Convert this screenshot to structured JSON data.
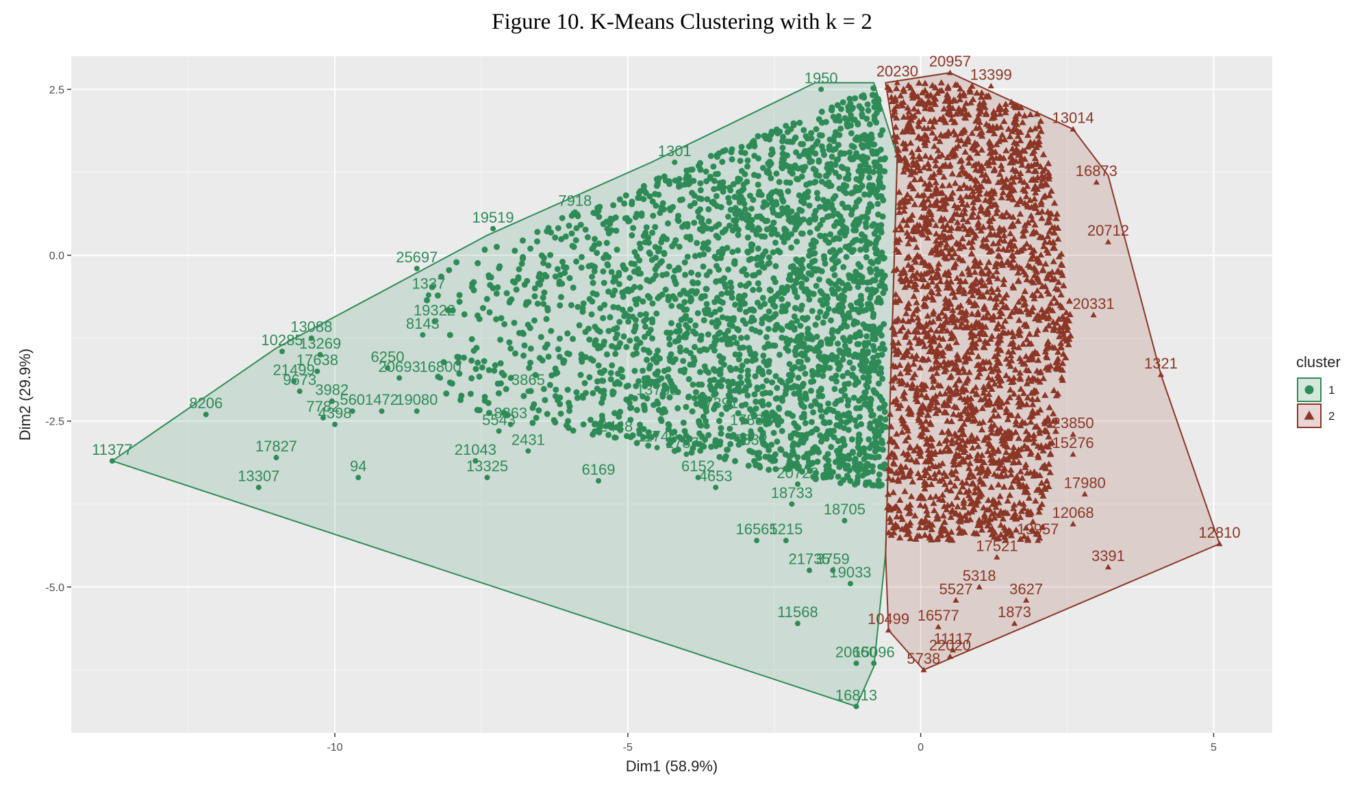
{
  "title": "Figure 10. K-Means Clustering with k = 2",
  "chart_data": {
    "type": "scatter",
    "xlabel": "Dim1 (58.9%)",
    "ylabel": "Dim2 (29.9%)",
    "xlim": [
      -14.5,
      6
    ],
    "ylim": [
      -7.2,
      3
    ],
    "x_ticks": [
      -10,
      -5,
      0,
      5
    ],
    "x_tick_labels": [
      "-10",
      "-5",
      "0",
      "5"
    ],
    "y_ticks": [
      2.5,
      0.0,
      -2.5,
      -5.0
    ],
    "y_tick_labels": [
      "2.5",
      "0.0",
      "-2.5",
      "-5.0"
    ],
    "grid": true,
    "background": "#ebebeb",
    "legend": {
      "title": "cluster",
      "placement": "right",
      "entries": [
        {
          "label": "1",
          "shape": "circle",
          "color": "#2e8b57"
        },
        {
          "label": "2",
          "shape": "triangle",
          "color": "#8b3626"
        }
      ]
    },
    "series": [
      {
        "name": "1",
        "color": "#2e8b57",
        "fill": "#2e8b57",
        "shape": "circle",
        "hull": [
          [
            -13.8,
            -3.1
          ],
          [
            -11.0,
            -1.4
          ],
          [
            -7.4,
            0.3
          ],
          [
            -4.6,
            1.4
          ],
          [
            -1.8,
            2.6
          ],
          [
            -0.8,
            2.6
          ],
          [
            -0.4,
            1.5
          ],
          [
            -0.6,
            -4.5
          ],
          [
            -0.8,
            -6.2
          ],
          [
            -1.1,
            -6.8
          ]
        ],
        "dense_region": {
          "x_range": [
            -8.5,
            -0.6
          ],
          "y_range": [
            -3.5,
            2.6
          ]
        },
        "points": [
          {
            "x": -13.8,
            "y": -3.1,
            "label": "11377"
          },
          {
            "x": -12.2,
            "y": -2.4,
            "label": "8206"
          },
          {
            "x": -11.3,
            "y": -3.5,
            "label": "13307"
          },
          {
            "x": -11.0,
            "y": -3.05,
            "label": "17827"
          },
          {
            "x": -10.9,
            "y": -1.45,
            "label": "10285"
          },
          {
            "x": -10.7,
            "y": -1.9,
            "label": "21499"
          },
          {
            "x": -10.6,
            "y": -2.05,
            "label": "9673"
          },
          {
            "x": -10.4,
            "y": -1.25,
            "label": "13088"
          },
          {
            "x": -10.25,
            "y": -1.5,
            "label": "13269"
          },
          {
            "x": -10.3,
            "y": -1.75,
            "label": "17638"
          },
          {
            "x": -10.05,
            "y": -2.2,
            "label": "3982"
          },
          {
            "x": -10.2,
            "y": -2.45,
            "label": "7782"
          },
          {
            "x": -10.0,
            "y": -2.55,
            "label": "4398"
          },
          {
            "x": -9.7,
            "y": -2.35,
            "label": "560"
          },
          {
            "x": -9.2,
            "y": -2.35,
            "label": "1472"
          },
          {
            "x": -9.6,
            "y": -3.35,
            "label": "94"
          },
          {
            "x": -9.1,
            "y": -1.7,
            "label": "6250"
          },
          {
            "x": -8.9,
            "y": -1.85,
            "label": "20693"
          },
          {
            "x": -8.6,
            "y": -2.35,
            "label": "19080"
          },
          {
            "x": -8.5,
            "y": -1.2,
            "label": "8143"
          },
          {
            "x": -8.2,
            "y": -1.85,
            "label": "16800"
          },
          {
            "x": -8.6,
            "y": -0.2,
            "label": "25697"
          },
          {
            "x": -8.4,
            "y": -0.6,
            "label": "1337"
          },
          {
            "x": -8.3,
            "y": -1.0,
            "label": "19322"
          },
          {
            "x": -7.3,
            "y": 0.4,
            "label": "19519"
          },
          {
            "x": -7.2,
            "y": -2.65,
            "label": "5543"
          },
          {
            "x": -7.6,
            "y": -3.1,
            "label": "21043"
          },
          {
            "x": -7.4,
            "y": -3.35,
            "label": "13325"
          },
          {
            "x": -7.0,
            "y": -2.55,
            "label": "8363"
          },
          {
            "x": -6.7,
            "y": -2.95,
            "label": "2431"
          },
          {
            "x": -6.7,
            "y": -2.05,
            "label": "3865"
          },
          {
            "x": -5.5,
            "y": -3.4,
            "label": "6169"
          },
          {
            "x": -5.2,
            "y": -2.75,
            "label": "2448"
          },
          {
            "x": -4.5,
            "y": -2.2,
            "label": "13768"
          },
          {
            "x": -4.5,
            "y": -2.9,
            "label": "11740"
          },
          {
            "x": -4.0,
            "y": -3.0,
            "label": "17872"
          },
          {
            "x": -3.8,
            "y": -3.35,
            "label": "6152"
          },
          {
            "x": -3.5,
            "y": -3.5,
            "label": "4653"
          },
          {
            "x": -3.4,
            "y": -2.4,
            "label": "7391"
          },
          {
            "x": -2.9,
            "y": -2.95,
            "label": "7332"
          },
          {
            "x": -2.9,
            "y": -2.65,
            "label": "17884"
          },
          {
            "x": -2.2,
            "y": -3.75,
            "label": "18733"
          },
          {
            "x": -2.1,
            "y": -3.45,
            "label": "20722"
          },
          {
            "x": -2.8,
            "y": -4.3,
            "label": "16565"
          },
          {
            "x": -2.3,
            "y": -4.3,
            "label": "1215"
          },
          {
            "x": -1.9,
            "y": -4.75,
            "label": "21735"
          },
          {
            "x": -1.5,
            "y": -4.75,
            "label": "3759"
          },
          {
            "x": -1.3,
            "y": -4.0,
            "label": "18705"
          },
          {
            "x": -1.2,
            "y": -4.95,
            "label": "19033"
          },
          {
            "x": -2.1,
            "y": -5.55,
            "label": "11568"
          },
          {
            "x": -1.1,
            "y": -6.15,
            "label": "20660"
          },
          {
            "x": -0.8,
            "y": -6.15,
            "label": "15096"
          },
          {
            "x": -1.1,
            "y": -6.8,
            "label": "16813"
          },
          {
            "x": -5.9,
            "y": 0.65,
            "label": "7918"
          },
          {
            "x": -4.2,
            "y": 1.4,
            "label": "1301"
          },
          {
            "x": -1.7,
            "y": 2.5,
            "label": "1950"
          }
        ]
      },
      {
        "name": "2",
        "color": "#8b3626",
        "fill": "#8b3626",
        "shape": "triangle",
        "hull": [
          [
            -0.6,
            2.6
          ],
          [
            0.5,
            2.75
          ],
          [
            2.6,
            1.9
          ],
          [
            3.2,
            1.2
          ],
          [
            4.1,
            -1.8
          ],
          [
            5.1,
            -4.35
          ],
          [
            0.05,
            -6.25
          ],
          [
            -0.55,
            -5.65
          ],
          [
            -0.6,
            -4.5
          ],
          [
            -0.4,
            1.5
          ]
        ],
        "dense_region": {
          "x_range": [
            -0.6,
            2.6
          ],
          "y_range": [
            -4.3,
            2.6
          ]
        },
        "points": [
          {
            "x": 0.5,
            "y": 2.75,
            "label": "20957"
          },
          {
            "x": 1.2,
            "y": 2.55,
            "label": "13399"
          },
          {
            "x": -0.4,
            "y": 2.6,
            "label": "20230"
          },
          {
            "x": 2.6,
            "y": 1.9,
            "label": "13014"
          },
          {
            "x": 3.0,
            "y": 1.1,
            "label": "16873"
          },
          {
            "x": 3.2,
            "y": 0.2,
            "label": "20712"
          },
          {
            "x": 2.95,
            "y": -0.9,
            "label": "20331"
          },
          {
            "x": 4.1,
            "y": -1.8,
            "label": "1321"
          },
          {
            "x": 5.1,
            "y": -4.35,
            "label": "12810"
          },
          {
            "x": 3.2,
            "y": -4.7,
            "label": "3391"
          },
          {
            "x": 2.0,
            "y": -4.3,
            "label": "19957"
          },
          {
            "x": 1.3,
            "y": -4.55,
            "label": "17521"
          },
          {
            "x": 1.0,
            "y": -5.0,
            "label": "5318"
          },
          {
            "x": 0.6,
            "y": -5.2,
            "label": "5527"
          },
          {
            "x": 0.3,
            "y": -5.6,
            "label": "16577"
          },
          {
            "x": -0.55,
            "y": -5.65,
            "label": "10499"
          },
          {
            "x": 0.55,
            "y": -5.95,
            "label": "11117"
          },
          {
            "x": 0.5,
            "y": -6.05,
            "label": "22020"
          },
          {
            "x": 0.05,
            "y": -6.25,
            "label": "5738"
          },
          {
            "x": 1.8,
            "y": -5.2,
            "label": "3627"
          },
          {
            "x": 1.6,
            "y": -5.55,
            "label": "1873"
          },
          {
            "x": 2.6,
            "y": -2.7,
            "label": "23850"
          },
          {
            "x": 2.6,
            "y": -3.0,
            "label": "15276"
          },
          {
            "x": 2.8,
            "y": -3.6,
            "label": "17980"
          },
          {
            "x": 2.6,
            "y": -4.05,
            "label": "12068"
          }
        ]
      }
    ]
  }
}
